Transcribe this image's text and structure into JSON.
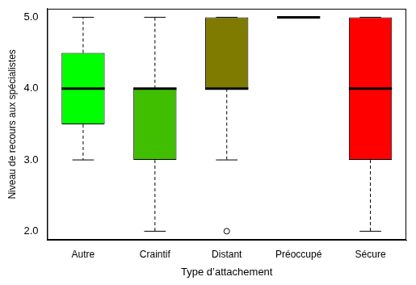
{
  "chart_data": {
    "type": "boxplot",
    "x_label": "Type d’attachement",
    "y_label": "Niveau de recours aux spécialistes",
    "categories": [
      "Autre",
      "Craintif",
      "Distant",
      "Préoccupé",
      "Sécure"
    ],
    "stats": [
      {
        "min": 3,
        "q1": 3.5,
        "median": 4,
        "q3": 4.5,
        "max": 5,
        "outliers": []
      },
      {
        "min": 2,
        "q1": 3,
        "median": 4,
        "q3": 4,
        "max": 5,
        "outliers": []
      },
      {
        "min": 3,
        "q1": 4,
        "median": 4,
        "q3": 5,
        "max": 5,
        "outliers": [
          2
        ]
      },
      {
        "min": 5,
        "q1": 5,
        "median": 5,
        "q3": 5,
        "max": 5,
        "outliers": []
      },
      {
        "min": 2,
        "q1": 3,
        "median": 4,
        "q3": 5,
        "max": 5,
        "outliers": []
      }
    ],
    "colors": [
      "#00ff00",
      "#3fbf00",
      "#7f7a00",
      "#ff8000",
      "#ff0000"
    ],
    "ylim": [
      1.88,
      5.12
    ],
    "yticks": [
      {
        "value": 2,
        "label": "2.0"
      },
      {
        "value": 3,
        "label": "3.0"
      },
      {
        "value": 4,
        "label": "4.0"
      },
      {
        "value": 5,
        "label": "5.0"
      }
    ],
    "grid": false
  }
}
